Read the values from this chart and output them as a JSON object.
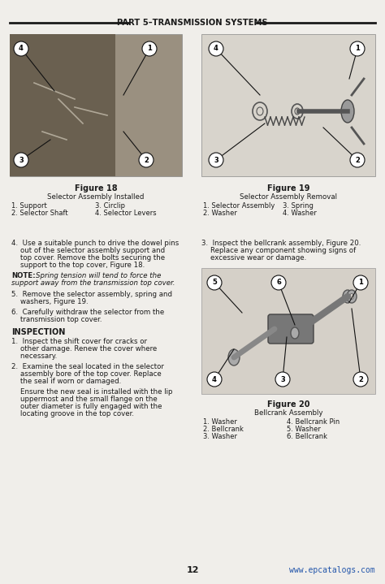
{
  "bg_color": "#f0eeea",
  "header_text": "PART 5–TRANSMISSION SYSTEMS",
  "header_color": "#1a1a1a",
  "page_number": "12",
  "website": "www.epcatalogs.com",
  "website_color": "#2255aa",
  "fig18_title": "Figure 18",
  "fig18_subtitle": "Selector Assembly Installed",
  "fig18_items_left": [
    "1. Support",
    "2. Selector Shaft"
  ],
  "fig18_items_right": [
    "3. Circlip",
    "4. Selector Levers"
  ],
  "fig19_title": "Figure 19",
  "fig19_subtitle": "Selector Assembly Removal",
  "fig19_items_left": [
    "1. Selector Assembly",
    "2. Washer"
  ],
  "fig19_items_right": [
    "3. Spring",
    "4. Washer"
  ],
  "fig20_title": "Figure 20",
  "fig20_subtitle": "Bellcrank Assembly",
  "fig20_items_left": [
    "1. Washer",
    "2. Bellcrank",
    "3. Washer"
  ],
  "fig20_items_right": [
    "4. Bellcrank Pin",
    "5. Washer",
    "6. Bellcrank"
  ],
  "note_italic": "Spring tension will tend to force the\nsupport away from the transmission top cover.",
  "note_prefix": "NOTE:"
}
